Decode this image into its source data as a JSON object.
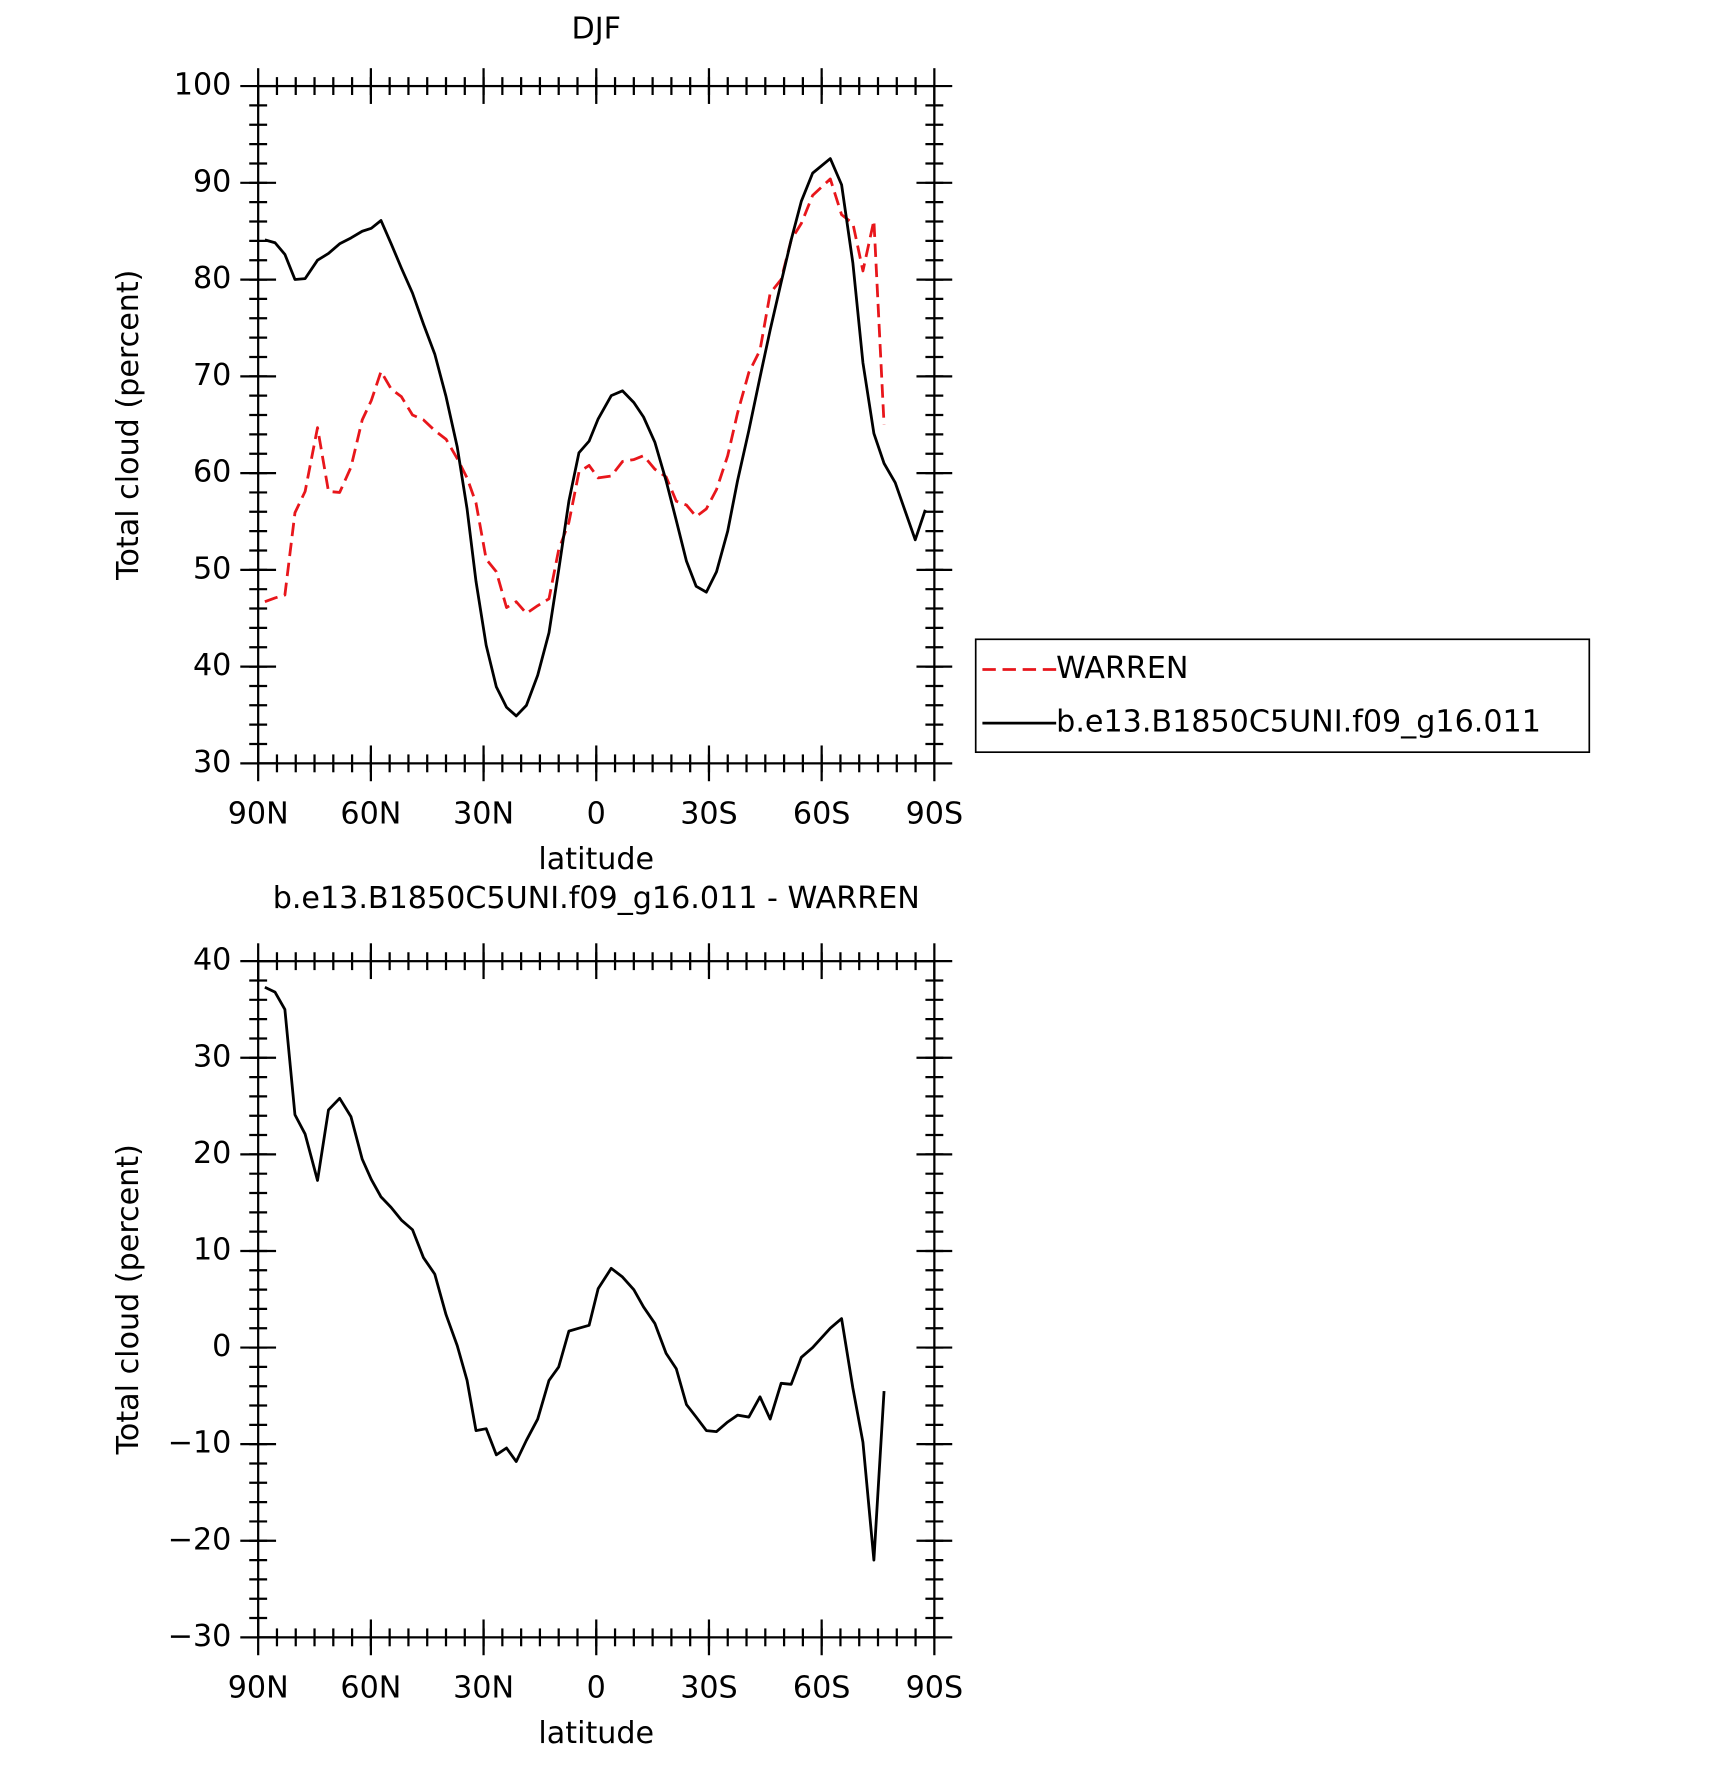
{
  "chart_data": [
    {
      "type": "line",
      "title": "DJF",
      "xlabel": "latitude",
      "ylabel": "Total cloud (percent)",
      "x": [
        88.2,
        85.5,
        82.9,
        80.2,
        77.5,
        74.2,
        71.3,
        68.3,
        65.3,
        62.3,
        59.9,
        57.3,
        54.6,
        51.9,
        48.9,
        46.0,
        43.0,
        40.0,
        37.0,
        34.4,
        32.0,
        29.3,
        26.6,
        23.9,
        21.3,
        18.6,
        15.6,
        12.6,
        10.0,
        7.3,
        4.6,
        1.9,
        -0.5,
        -4.0,
        -7.0,
        -10.0,
        -12.6,
        -15.6,
        -18.6,
        -21.3,
        -24.0,
        -26.6,
        -29.3,
        -32.0,
        -35.0,
        -37.6,
        -40.6,
        -43.6,
        -46.3,
        -49.2,
        -51.9,
        -54.6,
        -57.6,
        -62.3,
        -65.3,
        -68.3,
        -71.0,
        -73.9,
        -76.6,
        -79.6,
        -82.3,
        -84.9,
        -87.6
      ],
      "series": [
        {
          "name": "WARREN",
          "color": "#e8161b",
          "dash": true,
          "values": [
            46.7,
            47.1,
            47.4,
            55.9,
            58.1,
            64.7,
            58.1,
            58.0,
            60.6,
            65.5,
            67.5,
            70.5,
            68.7,
            67.9,
            66.0,
            65.5,
            64.4,
            63.5,
            61.5,
            59.5,
            56.9,
            51.1,
            49.8,
            46.1,
            46.7,
            45.5,
            46.3,
            47.0,
            52.1,
            54.9,
            60.1,
            60.8,
            59.5,
            59.7,
            61.2,
            61.4,
            61.8,
            60.4,
            59.6,
            57.1,
            56.7,
            55.5,
            56.3,
            58.3,
            61.8,
            66.2,
            70.4,
            72.7,
            78.6,
            80.0,
            84.1,
            85.8,
            88.7,
            90.4,
            86.7,
            85.8,
            80.9,
            86.1,
            65.0,
            null,
            null,
            null,
            null
          ]
        },
        {
          "name": "b.e13.B1850C5UNI.f09_g16.011",
          "color": "#000000",
          "dash": false,
          "values": [
            84.1,
            83.8,
            82.6,
            80.0,
            80.1,
            82.0,
            82.7,
            83.7,
            84.3,
            85.0,
            85.3,
            86.1,
            83.7,
            81.2,
            78.6,
            75.4,
            72.3,
            67.9,
            62.7,
            56.3,
            48.8,
            42.2,
            37.9,
            35.8,
            34.9,
            36.0,
            39.1,
            43.5,
            50.0,
            57.1,
            62.1,
            63.3,
            65.6,
            68.0,
            68.5,
            67.3,
            65.8,
            63.2,
            59.2,
            55.1,
            50.9,
            48.3,
            47.7,
            49.8,
            54.0,
            59.2,
            64.4,
            69.9,
            74.8,
            79.7,
            84.1,
            88.1,
            91.0,
            92.5,
            89.8,
            81.7,
            71.4,
            64.1,
            61.0,
            59.0,
            56.0,
            53.1,
            56.2
          ]
        }
      ],
      "xlim": [
        90,
        -90
      ],
      "xticks": [
        {
          "value": 90,
          "label": "90N"
        },
        {
          "value": 60,
          "label": "60N"
        },
        {
          "value": 30,
          "label": "30N"
        },
        0,
        {
          "value": -30,
          "label": "30S"
        },
        {
          "value": -60,
          "label": "60S"
        },
        {
          "value": -90,
          "label": "90S"
        }
      ],
      "ylim": [
        30,
        100
      ],
      "yticks": [
        30,
        40,
        50,
        60,
        70,
        80,
        90,
        100
      ],
      "legend": "right"
    },
    {
      "type": "line",
      "title": "b.e13.B1850C5UNI.f09_g16.011 - WARREN",
      "xlabel": "latitude",
      "ylabel": "Total cloud (percent)",
      "x": [
        88.2,
        85.5,
        82.9,
        80.2,
        77.5,
        74.2,
        71.3,
        68.3,
        65.3,
        62.3,
        59.9,
        57.3,
        54.6,
        51.9,
        48.9,
        46.0,
        43.0,
        40.0,
        37.0,
        34.4,
        32.0,
        29.3,
        26.6,
        23.9,
        21.3,
        18.6,
        15.6,
        12.6,
        10.0,
        7.3,
        4.6,
        1.9,
        -0.5,
        -4.0,
        -7.0,
        -10.0,
        -12.6,
        -15.6,
        -18.6,
        -21.3,
        -24.0,
        -26.6,
        -29.3,
        -32.0,
        -35.0,
        -37.6,
        -40.6,
        -43.6,
        -46.3,
        -49.2,
        -51.9,
        -54.6,
        -57.6,
        -62.3,
        -65.3,
        -68.3,
        -71.0,
        -73.9,
        -76.6
      ],
      "series": [
        {
          "color": "#000000",
          "dash": false,
          "values": [
            37.3,
            36.8,
            35.0,
            24.1,
            22.1,
            17.3,
            24.6,
            25.8,
            23.9,
            19.5,
            17.4,
            15.6,
            14.5,
            13.2,
            12.2,
            9.3,
            7.6,
            3.4,
            0.2,
            -3.4,
            -8.6,
            -8.4,
            -11.1,
            -10.4,
            -11.8,
            -9.6,
            -7.4,
            -3.4,
            -2.0,
            1.7,
            2.0,
            2.3,
            6.1,
            8.2,
            7.3,
            6.0,
            4.2,
            2.5,
            -0.6,
            -2.2,
            -5.9,
            -7.2,
            -8.6,
            -8.7,
            -7.7,
            -7.0,
            -7.2,
            -5.1,
            -7.4,
            -3.7,
            -3.8,
            -1.0,
            0.0,
            2.0,
            3.0,
            -4.2,
            -9.8,
            -22.0,
            -4.5
          ]
        }
      ],
      "xlim": [
        90,
        -90
      ],
      "xticks": [
        {
          "value": 90,
          "label": "90N"
        },
        {
          "value": 60,
          "label": "60N"
        },
        {
          "value": 30,
          "label": "30N"
        },
        0,
        {
          "value": -30,
          "label": "30S"
        },
        {
          "value": -60,
          "label": "60S"
        },
        {
          "value": -90,
          "label": "90S"
        }
      ],
      "ylim": [
        -30,
        40
      ],
      "yticks": [
        {
          "value": -30,
          "label": "−30"
        },
        {
          "value": -20,
          "label": "−20"
        },
        {
          "value": -10,
          "label": "−10"
        },
        0,
        10,
        20,
        30,
        40
      ]
    }
  ]
}
